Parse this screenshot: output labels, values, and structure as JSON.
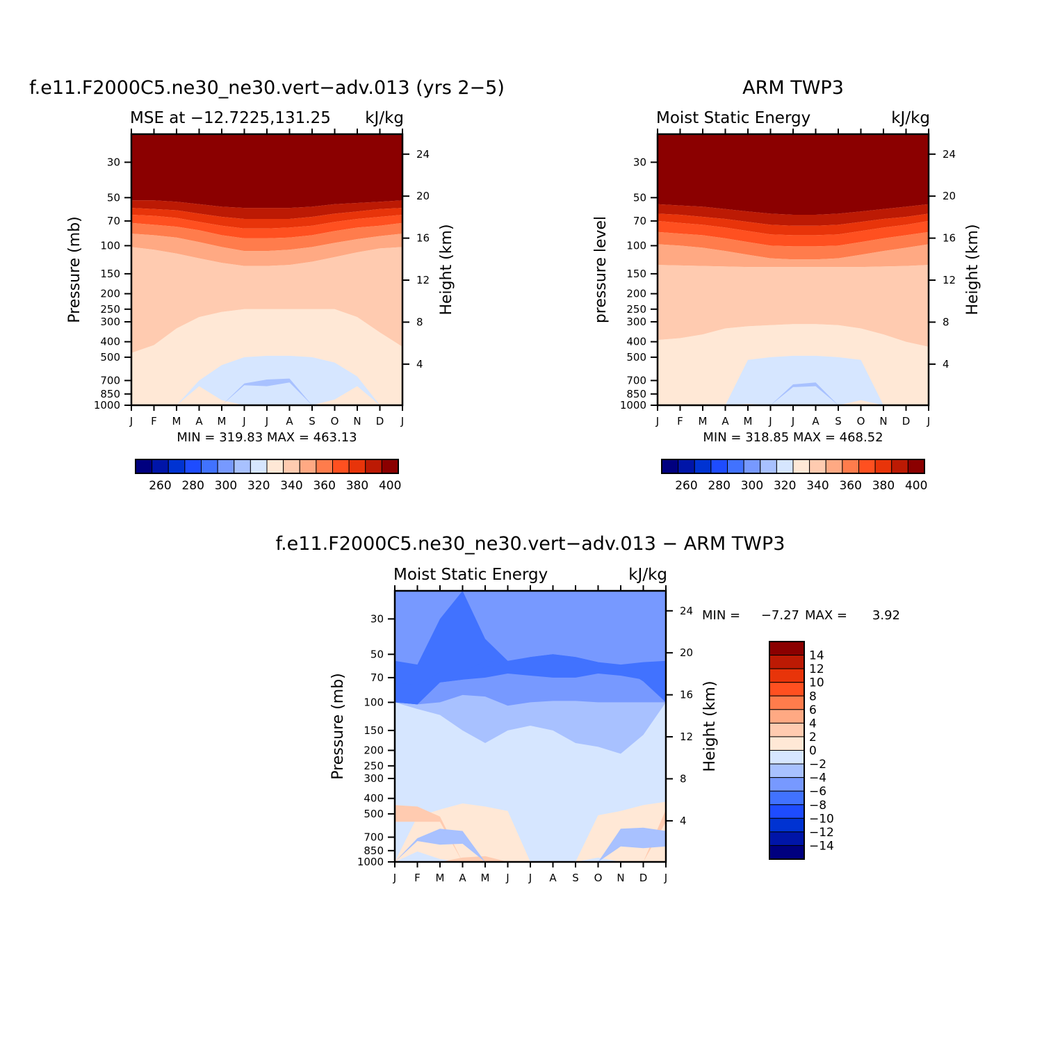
{
  "chart_data": [
    {
      "type": "heatmap",
      "title": "f.e11.F2000C5.ne30_ne30.vert−adv.013 (yrs 2−5)",
      "subtitle_left": "MSE at −12.7225,131.25",
      "subtitle_right": "kJ/kg",
      "ylabel": "Pressure (mb)",
      "ylabel_right": "Height (km)",
      "x_ticks": [
        "J",
        "F",
        "M",
        "A",
        "M",
        "J",
        "J",
        "A",
        "S",
        "O",
        "N",
        "D",
        "J"
      ],
      "y_ticks": [
        "30",
        "50",
        "70",
        "100",
        "150",
        "200",
        "250",
        "300",
        "400",
        "500",
        "700",
        "850",
        "1000"
      ],
      "y_ticks_right": [
        "24",
        "20",
        "16",
        "12",
        "8",
        "4"
      ],
      "minmax": "MIN = 319.83 MAX = 463.13",
      "min": 319.83,
      "max": 463.13,
      "levels": [
        250,
        260,
        270,
        280,
        290,
        300,
        310,
        320,
        330,
        340,
        350,
        360,
        370,
        380,
        390,
        400
      ],
      "colorbar_labels": [
        "260",
        "280",
        "300",
        "320",
        "340",
        "360",
        "380",
        "400"
      ],
      "bands": [
        {
          "level": 400,
          "top_hpa": [
            20,
            20,
            20,
            20,
            20,
            20,
            20,
            20,
            20,
            20,
            20,
            20,
            20
          ],
          "bottom_hpa": [
            52,
            52,
            53,
            55,
            57,
            58,
            58,
            58,
            57,
            55,
            54,
            53,
            52
          ]
        },
        {
          "level": 390,
          "top_hpa": [
            52,
            52,
            53,
            55,
            57,
            58,
            58,
            58,
            57,
            55,
            54,
            53,
            52
          ],
          "bottom_hpa": [
            58,
            59,
            60,
            63,
            66,
            68,
            68,
            68,
            66,
            63,
            61,
            59,
            58
          ]
        },
        {
          "level": 380,
          "top_hpa": [
            58,
            59,
            60,
            63,
            66,
            68,
            68,
            68,
            66,
            63,
            61,
            59,
            58
          ],
          "bottom_hpa": [
            64,
            65,
            67,
            71,
            75,
            78,
            78,
            77,
            75,
            71,
            68,
            66,
            64
          ]
        },
        {
          "level": 370,
          "top_hpa": [
            64,
            65,
            67,
            71,
            75,
            78,
            78,
            77,
            75,
            71,
            68,
            66,
            64
          ],
          "bottom_hpa": [
            72,
            74,
            76,
            80,
            86,
            90,
            90,
            89,
            86,
            81,
            77,
            75,
            72
          ]
        },
        {
          "level": 360,
          "top_hpa": [
            72,
            74,
            76,
            80,
            86,
            90,
            90,
            89,
            86,
            81,
            77,
            75,
            72
          ],
          "bottom_hpa": [
            84,
            86,
            89,
            95,
            102,
            108,
            108,
            106,
            102,
            96,
            91,
            87,
            84
          ]
        },
        {
          "level": 350,
          "top_hpa": [
            84,
            86,
            89,
            95,
            102,
            108,
            108,
            106,
            102,
            96,
            91,
            87,
            84
          ],
          "bottom_hpa": [
            102,
            106,
            112,
            120,
            128,
            134,
            134,
            132,
            126,
            118,
            110,
            104,
            102
          ]
        },
        {
          "level": 340,
          "top_hpa": [
            102,
            106,
            112,
            120,
            128,
            134,
            134,
            132,
            126,
            118,
            110,
            104,
            102
          ],
          "bottom_hpa": [
            470,
            420,
            330,
            280,
            260,
            250,
            250,
            250,
            250,
            250,
            280,
            350,
            430
          ]
        },
        {
          "level": 330,
          "top_hpa": [
            470,
            420,
            330,
            280,
            260,
            250,
            250,
            250,
            250,
            250,
            280,
            350,
            430
          ],
          "bottom_hpa": [
            940,
            930,
            920,
            910,
            960,
            1000,
            1000,
            1000,
            960,
            910,
            920,
            930,
            940
          ]
        },
        {
          "level": 320,
          "top_hpa": [
            1000,
            1000,
            1000,
            700,
            560,
            500,
            490,
            490,
            500,
            540,
            660,
            1000,
            1000
          ],
          "bottom_hpa": [
            1000,
            1000,
            1000,
            760,
            930,
            1000,
            1000,
            1000,
            1000,
            920,
            760,
            1000,
            1000
          ]
        },
        {
          "level": 310,
          "top_hpa": [
            1000,
            1000,
            1000,
            1000,
            1000,
            730,
            690,
            680,
            1000,
            1000,
            1000,
            1000,
            1000
          ],
          "bottom_hpa": [
            1000,
            1000,
            1000,
            1000,
            1000,
            750,
            760,
            720,
            1000,
            1000,
            1000,
            1000,
            1000
          ]
        }
      ]
    },
    {
      "type": "heatmap",
      "title": "ARM TWP3",
      "subtitle_left": "Moist Static Energy",
      "subtitle_right": "kJ/kg",
      "ylabel": "pressure level",
      "ylabel_right": "Height (km)",
      "x_ticks": [
        "J",
        "F",
        "M",
        "A",
        "M",
        "J",
        "J",
        "A",
        "S",
        "O",
        "N",
        "D",
        "J"
      ],
      "y_ticks": [
        "30",
        "50",
        "70",
        "100",
        "150",
        "200",
        "250",
        "300",
        "400",
        "500",
        "700",
        "850",
        "1000"
      ],
      "y_ticks_right": [
        "24",
        "20",
        "16",
        "12",
        "8",
        "4"
      ],
      "minmax": "MIN = 318.85 MAX = 468.52",
      "min": 318.85,
      "max": 468.52,
      "levels": [
        250,
        260,
        270,
        280,
        290,
        300,
        310,
        320,
        330,
        340,
        350,
        360,
        370,
        380,
        390,
        400
      ],
      "colorbar_labels": [
        "260",
        "280",
        "300",
        "320",
        "340",
        "360",
        "380",
        "400"
      ],
      "bands": [
        {
          "level": 400,
          "top_hpa": [
            20,
            20,
            20,
            20,
            20,
            20,
            20,
            20,
            20,
            20,
            20,
            20,
            20
          ],
          "bottom_hpa": [
            55,
            56,
            57,
            59,
            61,
            63,
            64,
            64,
            63,
            61,
            59,
            57,
            55
          ]
        },
        {
          "level": 390,
          "top_hpa": [
            55,
            56,
            57,
            59,
            61,
            63,
            64,
            64,
            63,
            61,
            59,
            57,
            55
          ],
          "bottom_hpa": [
            63,
            64,
            66,
            68,
            71,
            74,
            75,
            75,
            74,
            71,
            68,
            66,
            63
          ]
        },
        {
          "level": 380,
          "top_hpa": [
            63,
            64,
            66,
            68,
            71,
            74,
            75,
            75,
            74,
            71,
            68,
            66,
            63
          ],
          "bottom_hpa": [
            70,
            72,
            74,
            77,
            81,
            85,
            86,
            86,
            85,
            81,
            77,
            74,
            70
          ]
        },
        {
          "level": 370,
          "top_hpa": [
            70,
            72,
            74,
            77,
            81,
            85,
            86,
            86,
            85,
            81,
            77,
            74,
            70
          ],
          "bottom_hpa": [
            82,
            84,
            86,
            90,
            95,
            100,
            101,
            101,
            100,
            95,
            90,
            86,
            82
          ]
        },
        {
          "level": 360,
          "top_hpa": [
            82,
            84,
            86,
            90,
            95,
            100,
            101,
            101,
            100,
            95,
            90,
            86,
            82
          ],
          "bottom_hpa": [
            98,
            100,
            103,
            108,
            114,
            120,
            122,
            122,
            120,
            114,
            108,
            103,
            98
          ]
        },
        {
          "level": 350,
          "top_hpa": [
            98,
            100,
            103,
            108,
            114,
            120,
            122,
            122,
            120,
            114,
            108,
            103,
            98
          ],
          "bottom_hpa": [
            132,
            133,
            134,
            135,
            136,
            136,
            136,
            136,
            136,
            136,
            135,
            134,
            132
          ]
        },
        {
          "level": 340,
          "top_hpa": [
            132,
            133,
            134,
            135,
            136,
            136,
            136,
            136,
            136,
            136,
            135,
            134,
            132
          ],
          "bottom_hpa": [
            390,
            380,
            360,
            330,
            320,
            315,
            310,
            310,
            315,
            330,
            360,
            400,
            430
          ]
        },
        {
          "level": 330,
          "top_hpa": [
            390,
            380,
            360,
            330,
            320,
            315,
            310,
            310,
            315,
            330,
            360,
            400,
            430
          ],
          "bottom_hpa": [
            950,
            940,
            930,
            960,
            990,
            1000,
            1000,
            1000,
            990,
            960,
            930,
            935,
            945
          ]
        },
        {
          "level": 320,
          "top_hpa": [
            1000,
            1000,
            1000,
            1000,
            520,
            500,
            490,
            490,
            500,
            520,
            1000,
            1000,
            1000
          ],
          "bottom_hpa": [
            1000,
            1000,
            1000,
            1000,
            980,
            1000,
            1000,
            1000,
            1000,
            930,
            1000,
            1000,
            1000
          ]
        },
        {
          "level": 310,
          "top_hpa": [
            1000,
            1000,
            1000,
            1000,
            1000,
            1000,
            740,
            720,
            1000,
            1000,
            1000,
            1000,
            1000
          ],
          "bottom_hpa": [
            1000,
            1000,
            1000,
            1000,
            1000,
            1000,
            770,
            760,
            1000,
            1000,
            1000,
            1000,
            1000
          ]
        }
      ]
    },
    {
      "type": "heatmap",
      "title": "f.e11.F2000C5.ne30_ne30.vert−adv.013 − ARM TWP3",
      "subtitle_left": "Moist Static Energy",
      "subtitle_right": "kJ/kg",
      "ylabel": "Pressure (mb)",
      "ylabel_right": "Height (km)",
      "x_ticks": [
        "J",
        "F",
        "M",
        "A",
        "M",
        "J",
        "J",
        "A",
        "S",
        "O",
        "N",
        "D",
        "J"
      ],
      "y_ticks": [
        "30",
        "50",
        "70",
        "100",
        "150",
        "200",
        "250",
        "300",
        "400",
        "500",
        "700",
        "850",
        "1000"
      ],
      "y_ticks_right": [
        "24",
        "20",
        "16",
        "12",
        "8",
        "4"
      ],
      "minmax_label": "MIN =",
      "min_text": "−7.27",
      "max_label": "MAX =",
      "max_text": "3.92",
      "min": -7.27,
      "max": 3.92,
      "levels": [
        -16,
        -14,
        -12,
        -10,
        -8,
        -6,
        -4,
        -2,
        0,
        2,
        4,
        6,
        8,
        10,
        12,
        14
      ],
      "colorbar_labels": [
        "14",
        "12",
        "10",
        "8",
        "6",
        "4",
        "2",
        "0",
        "−2",
        "−4",
        "−6",
        "−8",
        "−10",
        "−12",
        "−14"
      ],
      "bands": [
        {
          "level": -4,
          "top_hpa": [
            20,
            20,
            20,
            20,
            20,
            20,
            20,
            20,
            20,
            20,
            20,
            20,
            20
          ],
          "bottom_hpa": [
            100,
            110,
            120,
            150,
            180,
            150,
            140,
            150,
            180,
            190,
            210,
            160,
            100
          ]
        },
        {
          "level": -6,
          "top_hpa": [
            20,
            20,
            20,
            20,
            20,
            20,
            20,
            20,
            20,
            20,
            20,
            20,
            20
          ],
          "bottom_hpa": [
            100,
            103,
            100,
            90,
            92,
            105,
            100,
            98,
            98,
            100,
            100,
            100,
            100
          ]
        },
        {
          "level": -8,
          "top_hpa": [
            55,
            58,
            30,
            20,
            40,
            55,
            52,
            50,
            52,
            56,
            58,
            56,
            55
          ],
          "bottom_hpa": [
            100,
            103,
            75,
            72,
            70,
            66,
            68,
            70,
            70,
            66,
            68,
            72,
            100
          ]
        },
        {
          "level": -8,
          "top_hpa": [
            75,
            78,
            65,
            65,
            55,
            57,
            52,
            50,
            52,
            56,
            60,
            72,
            74
          ],
          "bottom_hpa": [
            100,
            103,
            75,
            72,
            60,
            57,
            54,
            56,
            55,
            56,
            60,
            74,
            100
          ]
        },
        {
          "level": 0,
          "top_hpa": [
            1000,
            520,
            470,
            430,
            450,
            480,
            1000,
            1000,
            1000,
            510,
            480,
            440,
            420
          ],
          "bottom_hpa": [
            1000,
            860,
            960,
            1000,
            1000,
            1000,
            1000,
            1000,
            1000,
            940,
            1000,
            1000,
            1000
          ]
        },
        {
          "level": 2,
          "top_hpa": [
            440,
            450,
            520,
            1000,
            1000,
            1000,
            1000,
            1000,
            1000,
            1000,
            1000,
            1000,
            470
          ],
          "bottom_hpa": [
            560,
            560,
            560,
            1000,
            1000,
            1000,
            1000,
            1000,
            1000,
            1000,
            1000,
            1000,
            560
          ]
        },
        {
          "level": 2,
          "top_hpa": [
            1000,
            1000,
            1000,
            940,
            920,
            1000,
            1000,
            1000,
            1000,
            1000,
            1000,
            1000,
            1000
          ],
          "bottom_hpa": [
            1000,
            1000,
            1000,
            1000,
            1000,
            1000,
            1000,
            1000,
            1000,
            1000,
            1000,
            1000,
            1000
          ]
        },
        {
          "level": -4,
          "top_hpa": [
            1000,
            710,
            620,
            640,
            1000,
            1000,
            1000,
            1000,
            1000,
            1000,
            620,
            610,
            640
          ],
          "bottom_hpa": [
            1000,
            740,
            780,
            770,
            1000,
            1000,
            1000,
            1000,
            1000,
            1000,
            800,
            820,
            800
          ]
        }
      ]
    }
  ],
  "colors": {
    "cmap": [
      "#00007f",
      "#0015a8",
      "#0033d2",
      "#1e4cff",
      "#4172ff",
      "#7799ff",
      "#a8c1ff",
      "#d6e6ff",
      "#ffe8d6",
      "#ffcbb0",
      "#ffa983",
      "#ff7c4c",
      "#ff5020",
      "#e8340a",
      "#bc1a04",
      "#8b0000"
    ]
  }
}
